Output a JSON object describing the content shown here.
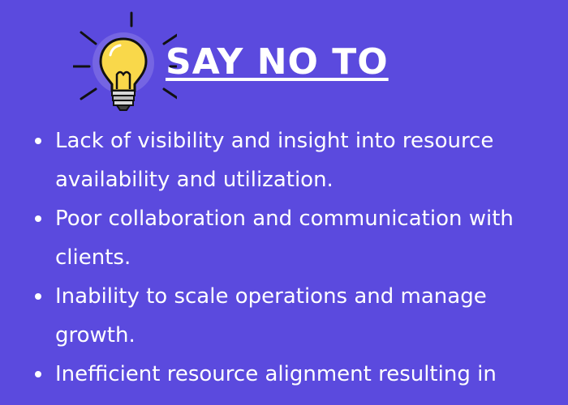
{
  "header": {
    "title": "SAY NO TO",
    "icon": "lightbulb-icon"
  },
  "bullets": [
    {
      "text": "Lack of visibility and insight into resource availability and utilization."
    },
    {
      "text": "Poor collaboration and communication with clients."
    },
    {
      "text": "Inability to scale operations and manage growth."
    },
    {
      "text": "Inefficient resource alignment resulting in"
    }
  ],
  "colors": {
    "background": "#5b4ade",
    "text": "#ffffff",
    "bulb": "#f9d84a"
  }
}
